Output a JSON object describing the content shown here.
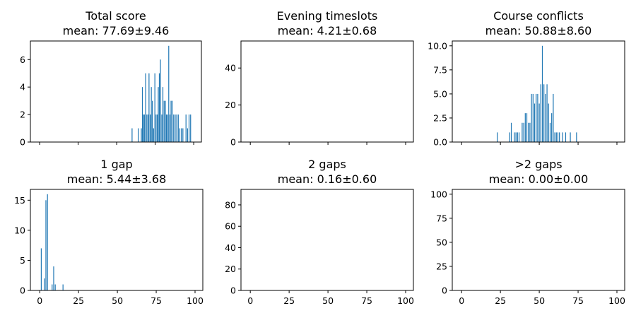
{
  "chart_data": [
    {
      "type": "bar",
      "title": "Total score",
      "subtitle": "mean: 77.69±9.46",
      "xlim": [
        -6,
        105
      ],
      "ylim": [
        0,
        7.35
      ],
      "xticks": [],
      "xtick_labels_shown": false,
      "yticks": [
        0,
        2,
        4,
        6
      ],
      "x": [
        60,
        64,
        66,
        66.7,
        67.4,
        68,
        68.8,
        69.6,
        70.4,
        71,
        71.8,
        72.5,
        73.2,
        74,
        74.8,
        75.6,
        76.4,
        77,
        77.7,
        78.4,
        79.3,
        80,
        80.8,
        81.6,
        82.3,
        83,
        83.8,
        84.6,
        85.3,
        86,
        87,
        88,
        89,
        90,
        91,
        92,
        93,
        95,
        96,
        97,
        98
      ],
      "values": [
        1,
        1,
        1,
        4,
        2,
        2,
        5,
        2,
        2,
        5,
        2,
        4,
        3,
        1,
        5,
        2,
        2,
        4,
        5,
        6,
        2,
        4,
        3,
        3,
        2,
        2,
        7,
        2,
        3,
        3,
        2,
        2,
        2,
        2,
        1,
        1,
        1,
        2,
        1,
        2,
        2
      ],
      "grid": false
    },
    {
      "type": "bar",
      "title": "Evening timeslots",
      "subtitle": "mean: 4.21±0.68",
      "xlim": [
        -6,
        105
      ],
      "ylim": [
        0,
        54.6
      ],
      "xticks": [],
      "xtick_labels_shown": false,
      "yticks": [
        0,
        20,
        40
      ],
      "x": [],
      "values": [],
      "grid": false
    },
    {
      "type": "bar",
      "title": "Course conflicts",
      "subtitle": "mean: 50.88±8.60",
      "xlim": [
        -6,
        105
      ],
      "ylim": [
        0,
        10.5
      ],
      "xticks": [],
      "xtick_labels_shown": false,
      "yticks": [
        0.0,
        2.5,
        5.0,
        7.5,
        10.0
      ],
      "x": [
        23,
        31,
        32,
        34,
        35,
        36,
        37,
        39,
        40,
        41,
        42,
        43,
        44,
        45,
        46,
        47,
        48,
        49,
        50,
        51,
        52,
        53,
        54,
        55,
        56,
        57,
        58,
        59,
        60,
        61,
        62,
        63,
        65,
        67,
        70,
        74
      ],
      "values": [
        1,
        1,
        2,
        1,
        1,
        1,
        1,
        2,
        2,
        3,
        3,
        2,
        2,
        5,
        5,
        4,
        5,
        5,
        4,
        6,
        10,
        6,
        5,
        6,
        4,
        2,
        3,
        5,
        1,
        1,
        1,
        1,
        1,
        1,
        1,
        1
      ],
      "grid": false
    },
    {
      "type": "bar",
      "title": "1 gap",
      "subtitle": "mean: 5.44±3.68",
      "xlim": [
        -6,
        105
      ],
      "ylim": [
        0,
        16.8
      ],
      "xticks": [
        0,
        25,
        50,
        75,
        100
      ],
      "xtick_labels_shown": true,
      "yticks": [
        0,
        5,
        10,
        15
      ],
      "x": [
        1,
        3,
        4,
        5,
        8,
        9,
        10,
        15
      ],
      "values": [
        7,
        2,
        15,
        16,
        1,
        4,
        1,
        1
      ],
      "grid": false
    },
    {
      "type": "bar",
      "title": "2 gaps",
      "subtitle": "mean: 0.16±0.60",
      "xlim": [
        -6,
        105
      ],
      "ylim": [
        0,
        94.5
      ],
      "xticks": [
        0,
        25,
        50,
        75,
        100
      ],
      "xtick_labels_shown": true,
      "yticks": [
        0,
        20,
        40,
        60,
        80
      ],
      "x": [],
      "values": [],
      "grid": false
    },
    {
      "type": "bar",
      "title": ">2 gaps",
      "subtitle": "mean: 0.00±0.00",
      "xlim": [
        -6,
        105
      ],
      "ylim": [
        0,
        105
      ],
      "xticks": [
        0,
        25,
        50,
        75,
        100
      ],
      "xtick_labels_shown": true,
      "yticks": [
        0,
        25,
        50,
        75,
        100
      ],
      "x": [],
      "values": [],
      "grid": false
    }
  ],
  "colors": {
    "bar": "#1f77b4"
  }
}
